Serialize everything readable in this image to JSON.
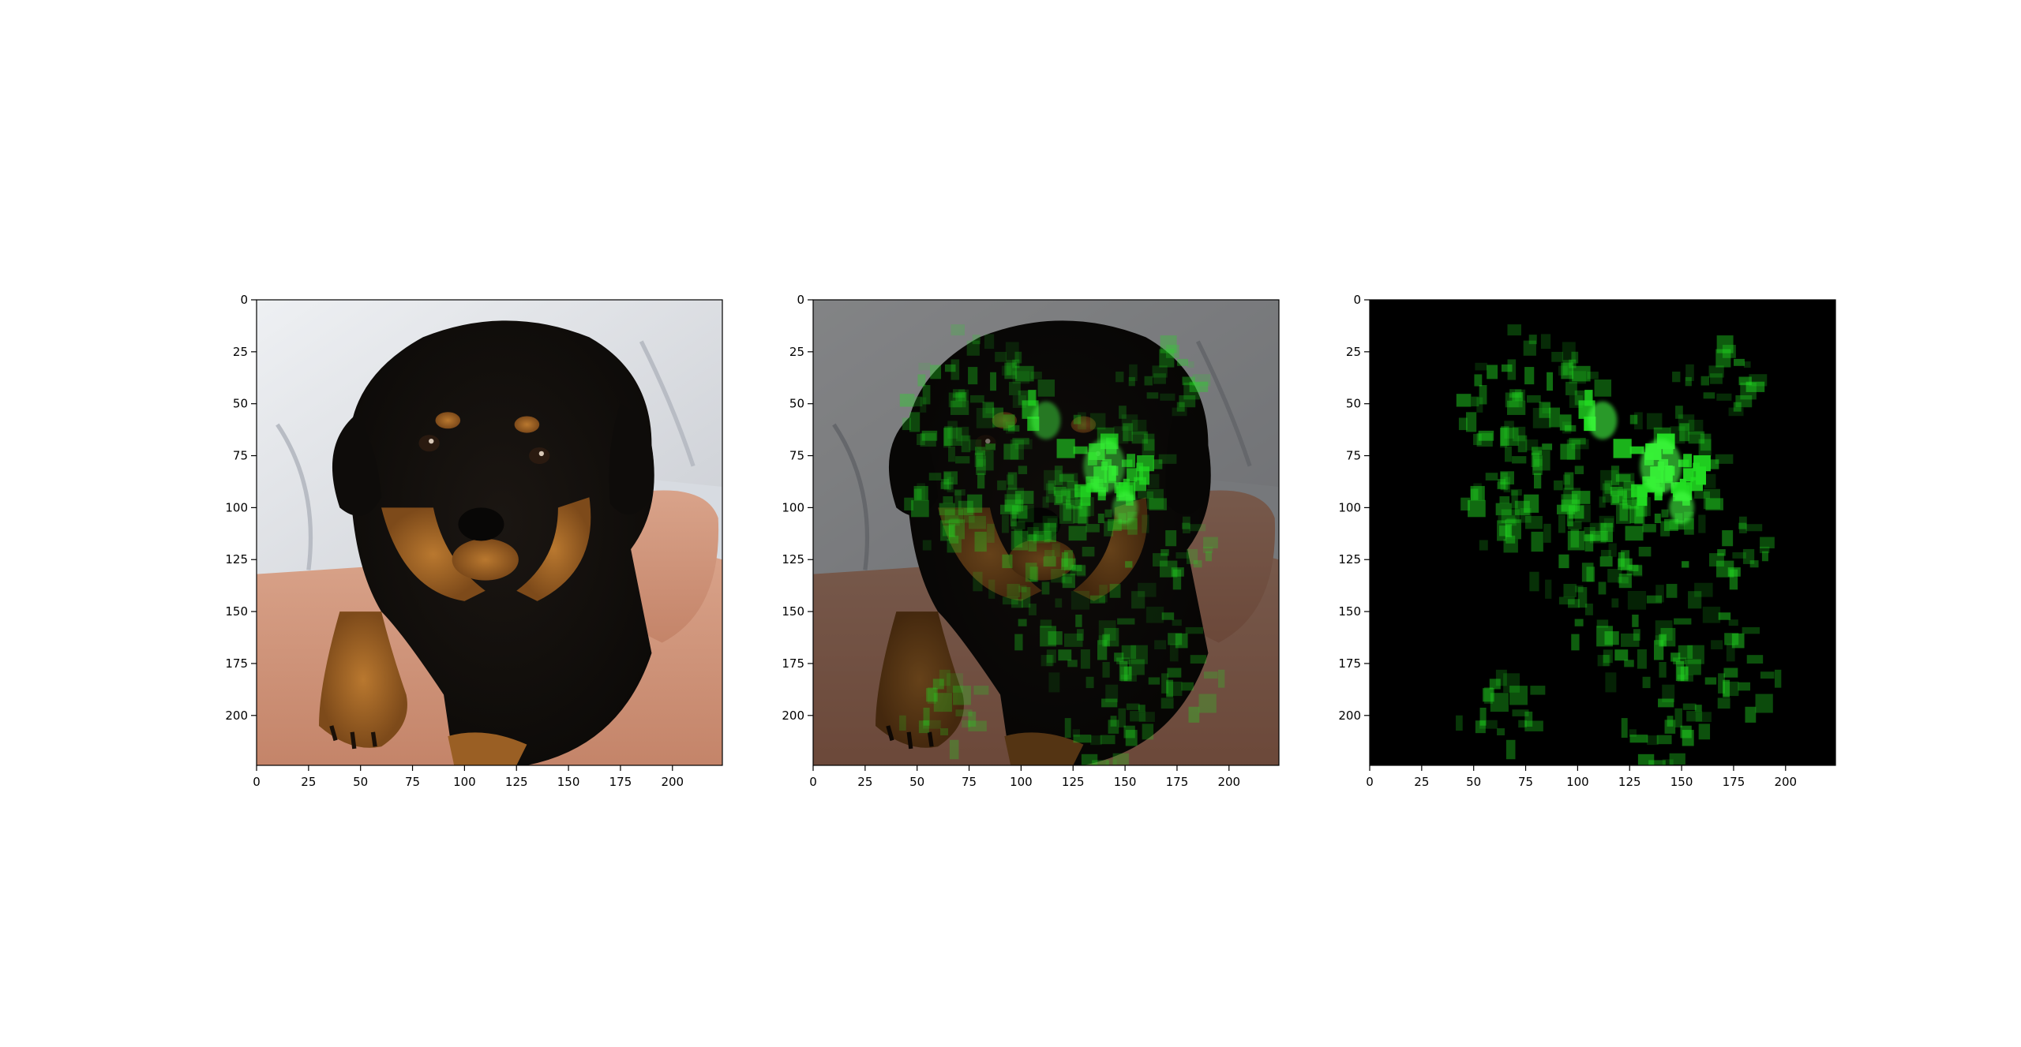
{
  "figure": {
    "background": "#ffffff",
    "panel_count": 3
  },
  "colors": {
    "highlight": "#22dd22",
    "axis": "#000000",
    "mask_background": "#000000"
  },
  "chart_data": [
    {
      "type": "image",
      "content": "photo of a black-and-tan puppy held in arms",
      "xlim": [
        0,
        224
      ],
      "ylim": [
        224,
        0
      ],
      "xticks": [
        0,
        25,
        50,
        75,
        100,
        125,
        150,
        175,
        200
      ],
      "yticks": [
        0,
        25,
        50,
        75,
        100,
        125,
        150,
        175,
        200
      ],
      "grid": false,
      "title": "",
      "xlabel": "",
      "ylabel": ""
    },
    {
      "type": "image",
      "content": "photo with green attribution overlay",
      "xlim": [
        0,
        224
      ],
      "ylim": [
        224,
        0
      ],
      "xticks": [
        0,
        25,
        50,
        75,
        100,
        125,
        150,
        175,
        200
      ],
      "yticks": [
        0,
        25,
        50,
        75,
        100,
        125,
        150,
        175,
        200
      ],
      "grid": false,
      "title": "",
      "xlabel": "",
      "ylabel": ""
    },
    {
      "type": "image",
      "content": "green attribution mask on black background",
      "xlim": [
        0,
        224
      ],
      "ylim": [
        224,
        0
      ],
      "xticks": [
        0,
        25,
        50,
        75,
        100,
        125,
        150,
        175,
        200
      ],
      "yticks": [
        0,
        25,
        50,
        75,
        100,
        125,
        150,
        175,
        200
      ],
      "grid": false,
      "title": "",
      "xlabel": "",
      "ylabel": ""
    }
  ]
}
